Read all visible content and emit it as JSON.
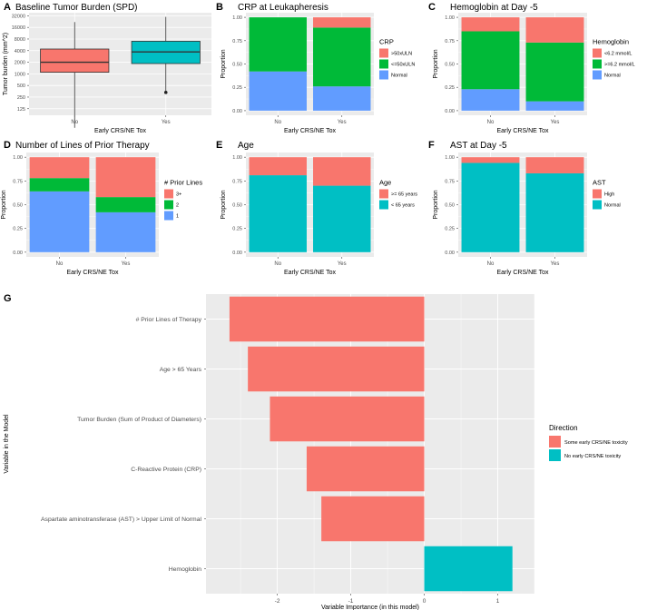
{
  "colors": {
    "red": "#F8766D",
    "green": "#00BA38",
    "blue": "#619CFF",
    "teal": "#00BFC4",
    "panel_bg": "#EBEBEB",
    "grid": "#FFFFFF"
  },
  "chart_data": [
    {
      "type": "box",
      "label": "A",
      "title": "Baseline Tumor Burden (SPD)",
      "xlabel": "Early CRS/NE Tox",
      "ylabel": "Tumor burden (mm^2)",
      "categories": [
        "No",
        "Yes"
      ],
      "y_ticks": [
        "125",
        "250",
        "500",
        "1000",
        "2000",
        "4000",
        "8000",
        "16000",
        "32000"
      ],
      "scale": "log2",
      "boxes": [
        {
          "group": "No",
          "min": 40,
          "q1": 1100,
          "median": 2000,
          "q3": 4400,
          "max": 22000,
          "outliers": []
        },
        {
          "group": "Yes",
          "min": 310,
          "q1": 1850,
          "median": 3700,
          "q3": 7000,
          "max": 30000,
          "outliers": [
            330
          ]
        }
      ]
    },
    {
      "type": "stacked_bar",
      "label": "B",
      "title": "CRP at Leukapheresis",
      "xlabel": "Early CRS/NE Tox",
      "ylabel": "Proportion",
      "categories": [
        "No",
        "Yes"
      ],
      "y_ticks": [
        "0.00",
        "0.25",
        "0.50",
        "0.75",
        "1.00"
      ],
      "legend_title": "CRP",
      "series": [
        {
          "name": "Normal",
          "color": "#619CFF",
          "values": [
            0.42,
            0.26
          ]
        },
        {
          "name": "<=50xULN",
          "color": "#00BA38",
          "values": [
            0.58,
            0.63
          ]
        },
        {
          "name": ">50xULN",
          "color": "#F8766D",
          "values": [
            0.0,
            0.11
          ]
        }
      ]
    },
    {
      "type": "stacked_bar",
      "label": "C",
      "title": "Hemoglobin at Day -5",
      "xlabel": "Early CRS/NE Tox",
      "ylabel": "Proportion",
      "categories": [
        "No",
        "Yes"
      ],
      "y_ticks": [
        "0.00",
        "0.25",
        "0.50",
        "0.75",
        "1.00"
      ],
      "legend_title": "Hemoglobin",
      "series": [
        {
          "name": "Normal",
          "color": "#619CFF",
          "values": [
            0.23,
            0.1
          ]
        },
        {
          "name": ">=6.2 mmol/L",
          "color": "#00BA38",
          "values": [
            0.62,
            0.63
          ]
        },
        {
          "name": "<6.2 mmol/L",
          "color": "#F8766D",
          "values": [
            0.15,
            0.27
          ]
        }
      ]
    },
    {
      "type": "stacked_bar",
      "label": "D",
      "title": "Number of Lines of Prior Therapy",
      "xlabel": "Early CRS/NE Tox",
      "ylabel": "Proportion",
      "categories": [
        "No",
        "Yes"
      ],
      "y_ticks": [
        "0.00",
        "0.25",
        "0.50",
        "0.75",
        "1.00"
      ],
      "legend_title": "# Prior Lines",
      "series": [
        {
          "name": "1",
          "color": "#619CFF",
          "values": [
            0.64,
            0.42
          ]
        },
        {
          "name": "2",
          "color": "#00BA38",
          "values": [
            0.14,
            0.16
          ]
        },
        {
          "name": "3+",
          "color": "#F8766D",
          "values": [
            0.22,
            0.42
          ]
        }
      ]
    },
    {
      "type": "stacked_bar",
      "label": "E",
      "title": "Age",
      "xlabel": "Early CRS/NE Tox",
      "ylabel": "Proportion",
      "categories": [
        "No",
        "Yes"
      ],
      "y_ticks": [
        "0.00",
        "0.25",
        "0.50",
        "0.75",
        "1.00"
      ],
      "legend_title": "Age",
      "series": [
        {
          "name": "< 65 years",
          "color": "#00BFC4",
          "values": [
            0.81,
            0.7
          ]
        },
        {
          "name": ">= 65 years",
          "color": "#F8766D",
          "values": [
            0.19,
            0.3
          ]
        }
      ]
    },
    {
      "type": "stacked_bar",
      "label": "F",
      "title": "AST at Day -5",
      "xlabel": "Early CRS/NE Tox",
      "ylabel": "Proportion",
      "categories": [
        "No",
        "Yes"
      ],
      "y_ticks": [
        "0.00",
        "0.25",
        "0.50",
        "0.75",
        "1.00"
      ],
      "legend_title": "AST",
      "series": [
        {
          "name": "Normal",
          "color": "#00BFC4",
          "values": [
            0.94,
            0.83
          ]
        },
        {
          "name": "High",
          "color": "#F8766D",
          "values": [
            0.06,
            0.17
          ]
        }
      ]
    },
    {
      "type": "hbar",
      "label": "G",
      "xlabel": "Variable Importance (in this model)",
      "ylabel": "Variable in the Model",
      "xlim": [
        -2.97,
        1.5
      ],
      "x_ticks": [
        -2,
        -1,
        0,
        1
      ],
      "x_tick_labels": [
        "-2",
        "-1",
        "0",
        "1"
      ],
      "categories": [
        "# Prior Lines of Therapy",
        "Age > 65 Years",
        "Tumor Burden (Sum of Product of Diameters)",
        "C-Reactive Protein (CRP)",
        "Aspartate aminotransferase (AST) > Upper Limit of Normal",
        "Hemoglobin"
      ],
      "values": [
        -2.65,
        -2.4,
        -2.1,
        -1.6,
        -1.4,
        1.2
      ],
      "legend_title": "Direction",
      "legend": [
        {
          "name": "Some early CRS/NE toxicity",
          "color": "#F8766D"
        },
        {
          "name": "No early CRS/NE toxicity",
          "color": "#00BFC4"
        }
      ]
    }
  ]
}
